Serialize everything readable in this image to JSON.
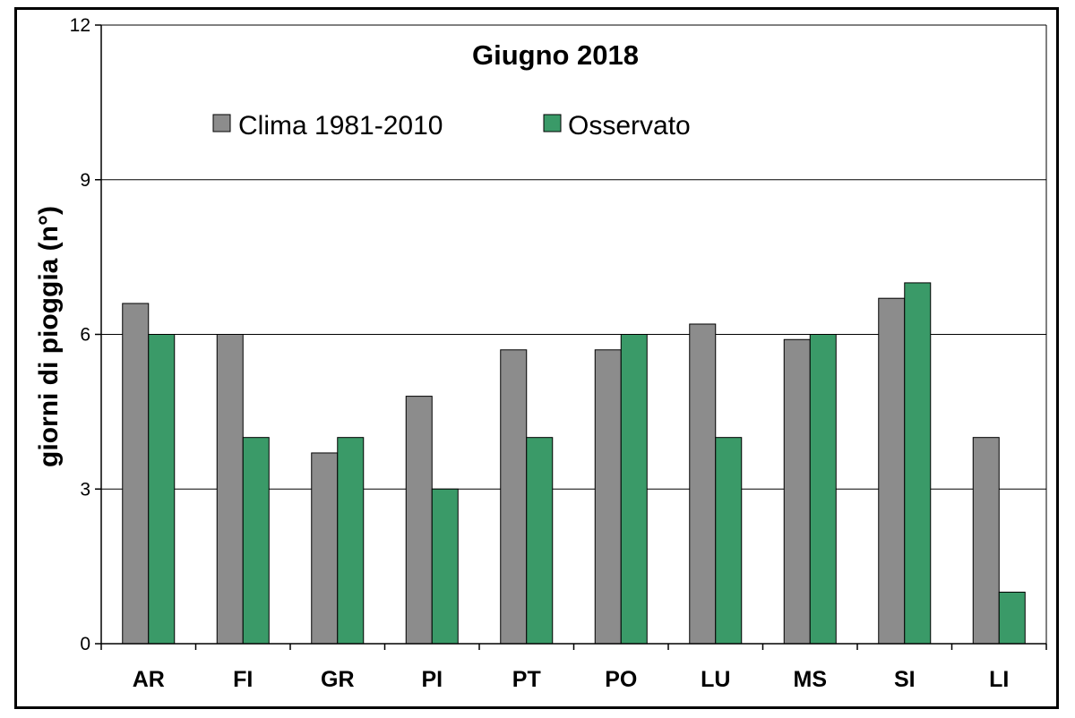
{
  "colors": {
    "clima": "#8c8c8c",
    "osservato": "#3a9a68",
    "axis": "#000000",
    "grid": "#000000"
  },
  "chart_data": {
    "type": "bar",
    "title": "Giugno 2018",
    "xlabel": "",
    "ylabel": "giorni di pioggia   (n°)",
    "ylim": [
      0,
      12
    ],
    "yticks": [
      0,
      3,
      6,
      9,
      12
    ],
    "grid": true,
    "legend_position": "top",
    "categories": [
      "AR",
      "FI",
      "GR",
      "PI",
      "PT",
      "PO",
      "LU",
      "MS",
      "SI",
      "LI"
    ],
    "series": [
      {
        "name": "Clima 1981-2010",
        "color": "#8c8c8c",
        "values": [
          6.6,
          6.0,
          3.7,
          4.8,
          5.7,
          5.7,
          6.2,
          5.9,
          6.7,
          4.0
        ]
      },
      {
        "name": "Osservato",
        "color": "#3a9a68",
        "values": [
          6.0,
          4.0,
          4.0,
          3.0,
          4.0,
          6.0,
          4.0,
          6.0,
          7.0,
          1.0
        ]
      }
    ]
  }
}
